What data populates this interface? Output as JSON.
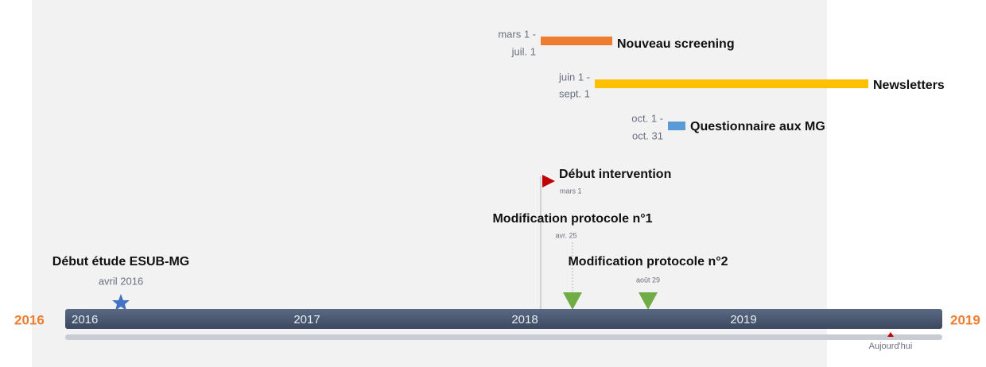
{
  "edge_labels": {
    "start": "2016",
    "end": "2019"
  },
  "years": [
    "2016",
    "2017",
    "2018",
    "2019"
  ],
  "tasks": [
    {
      "date_start": "mars 1 -",
      "date_end": "juil. 1",
      "label": "Nouveau screening"
    },
    {
      "date_start": "juin 1 -",
      "date_end": "sept. 1",
      "label": "Newsletters"
    },
    {
      "date_start": "oct. 1 -",
      "date_end": "oct. 31",
      "label": "Questionnaire aux MG"
    }
  ],
  "milestones": [
    {
      "label": "Début intervention",
      "date": "mars 1"
    },
    {
      "label": "Modification protocole n°1",
      "date": "avr. 25"
    },
    {
      "label": "Modification protocole n°2",
      "date": "août 29"
    },
    {
      "label": "Début étude ESUB-MG",
      "date": "avril 2016"
    }
  ],
  "today": "Aujourd'hui"
}
